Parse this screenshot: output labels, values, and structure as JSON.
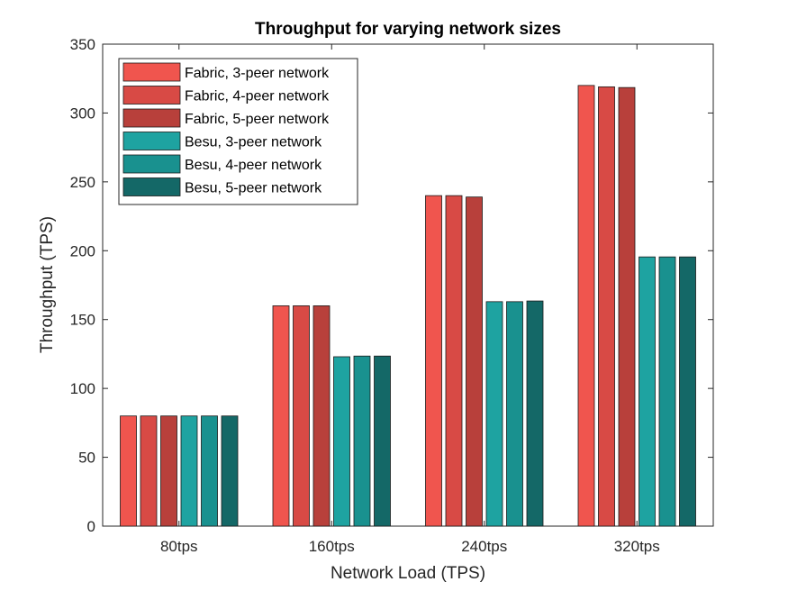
{
  "chart_data": {
    "type": "bar",
    "title": "Throughput for varying network sizes",
    "xlabel": "Network Load (TPS)",
    "ylabel": "Throughput (TPS)",
    "categories": [
      "80tps",
      "160tps",
      "240tps",
      "320tps"
    ],
    "ylim": [
      0,
      350
    ],
    "yticks": [
      0,
      50,
      100,
      150,
      200,
      250,
      300,
      350
    ],
    "grid": false,
    "legend_position": "top-left",
    "series": [
      {
        "name": "Fabric, 3-peer network",
        "color": "#F0554E",
        "values": [
          80,
          160,
          240,
          320
        ]
      },
      {
        "name": "Fabric, 4-peer network",
        "color": "#D84A45",
        "values": [
          80,
          160,
          240,
          319
        ]
      },
      {
        "name": "Fabric, 5-peer network",
        "color": "#B8403B",
        "values": [
          80,
          160,
          239,
          318.5
        ]
      },
      {
        "name": "Besu, 3-peer network",
        "color": "#1EA3A1",
        "values": [
          80,
          123,
          163,
          195.5
        ]
      },
      {
        "name": "Besu, 4-peer network",
        "color": "#19918F",
        "values": [
          80,
          123.5,
          163,
          195.5
        ]
      },
      {
        "name": "Besu, 5-peer network",
        "color": "#146867",
        "values": [
          80,
          123.5,
          163.5,
          195.5
        ]
      }
    ]
  }
}
